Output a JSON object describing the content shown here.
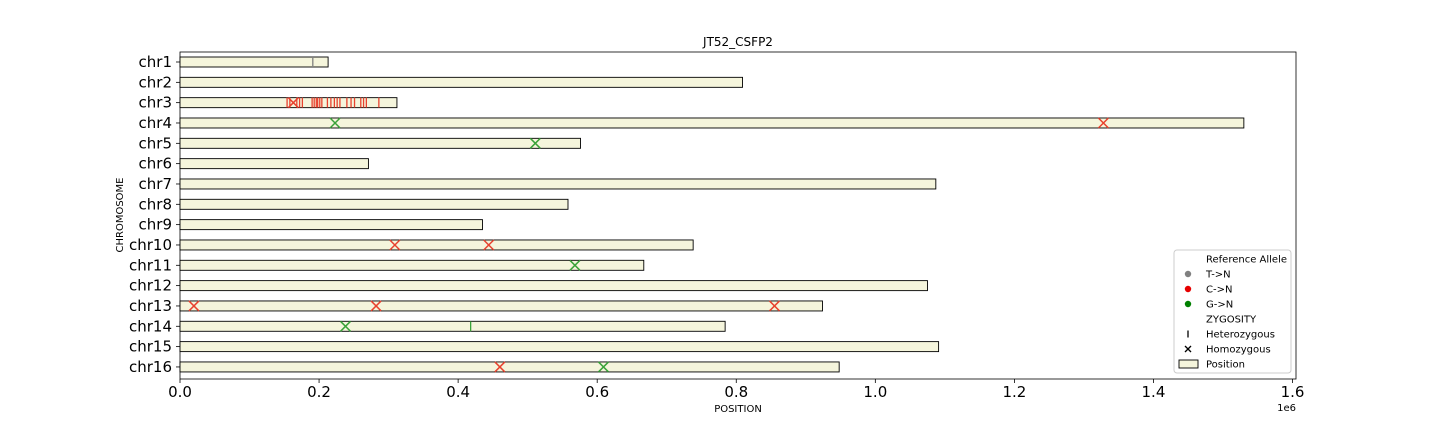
{
  "chart_data": {
    "type": "scatter",
    "title": "JT52_CSFP2",
    "xlabel": "POSITION",
    "ylabel": "CHROMOSOME",
    "x_offset_label": "1e6",
    "xlim": [
      0,
      1605000
    ],
    "x_ticks": [
      0,
      200000,
      400000,
      600000,
      800000,
      1000000,
      1200000,
      1400000,
      1600000
    ],
    "x_tick_labels": [
      "0.0",
      "0.2",
      "0.4",
      "0.6",
      "0.8",
      "1.0",
      "1.2",
      "1.4",
      "1.6"
    ],
    "chromosomes": [
      {
        "name": "chr1",
        "length": 213000
      },
      {
        "name": "chr2",
        "length": 809000
      },
      {
        "name": "chr3",
        "length": 312000
      },
      {
        "name": "chr4",
        "length": 1530000
      },
      {
        "name": "chr5",
        "length": 576000
      },
      {
        "name": "chr6",
        "length": 271000
      },
      {
        "name": "chr7",
        "length": 1087000
      },
      {
        "name": "chr8",
        "length": 558000
      },
      {
        "name": "chr9",
        "length": 435000
      },
      {
        "name": "chr10",
        "length": 738000
      },
      {
        "name": "chr11",
        "length": 667000
      },
      {
        "name": "chr12",
        "length": 1075000
      },
      {
        "name": "chr13",
        "length": 924000
      },
      {
        "name": "chr14",
        "length": 784000
      },
      {
        "name": "chr15",
        "length": 1091000
      },
      {
        "name": "chr16",
        "length": 948000
      }
    ],
    "colors": {
      "T->N": "#808080",
      "C->N": "#e8422f",
      "G->N": "#3aa33a",
      "bar_fill": "#f5f5dc",
      "bar_edge": "#000000"
    },
    "variants": [
      {
        "chrom": "chr1",
        "pos": 191000,
        "ref": "T->N",
        "zygosity": "Heterozygous"
      },
      {
        "chrom": "chr3",
        "pos": 154000,
        "ref": "C->N",
        "zygosity": "Heterozygous"
      },
      {
        "chrom": "chr3",
        "pos": 158000,
        "ref": "C->N",
        "zygosity": "Heterozygous"
      },
      {
        "chrom": "chr3",
        "pos": 163000,
        "ref": "C->N",
        "zygosity": "Homozygous"
      },
      {
        "chrom": "chr3",
        "pos": 168000,
        "ref": "C->N",
        "zygosity": "Heterozygous"
      },
      {
        "chrom": "chr3",
        "pos": 172000,
        "ref": "C->N",
        "zygosity": "Heterozygous"
      },
      {
        "chrom": "chr3",
        "pos": 176000,
        "ref": "C->N",
        "zygosity": "Heterozygous"
      },
      {
        "chrom": "chr3",
        "pos": 190000,
        "ref": "C->N",
        "zygosity": "Heterozygous"
      },
      {
        "chrom": "chr3",
        "pos": 193000,
        "ref": "C->N",
        "zygosity": "Heterozygous"
      },
      {
        "chrom": "chr3",
        "pos": 196000,
        "ref": "C->N",
        "zygosity": "Heterozygous"
      },
      {
        "chrom": "chr3",
        "pos": 198000,
        "ref": "C->N",
        "zygosity": "Heterozygous"
      },
      {
        "chrom": "chr3",
        "pos": 201000,
        "ref": "C->N",
        "zygosity": "Heterozygous"
      },
      {
        "chrom": "chr3",
        "pos": 204000,
        "ref": "C->N",
        "zygosity": "Heterozygous"
      },
      {
        "chrom": "chr3",
        "pos": 212000,
        "ref": "C->N",
        "zygosity": "Heterozygous"
      },
      {
        "chrom": "chr3",
        "pos": 217000,
        "ref": "C->N",
        "zygosity": "Heterozygous"
      },
      {
        "chrom": "chr3",
        "pos": 222000,
        "ref": "C->N",
        "zygosity": "Heterozygous"
      },
      {
        "chrom": "chr3",
        "pos": 226000,
        "ref": "C->N",
        "zygosity": "Heterozygous"
      },
      {
        "chrom": "chr3",
        "pos": 230000,
        "ref": "C->N",
        "zygosity": "Heterozygous"
      },
      {
        "chrom": "chr3",
        "pos": 240000,
        "ref": "C->N",
        "zygosity": "Heterozygous"
      },
      {
        "chrom": "chr3",
        "pos": 246000,
        "ref": "C->N",
        "zygosity": "Heterozygous"
      },
      {
        "chrom": "chr3",
        "pos": 251000,
        "ref": "C->N",
        "zygosity": "Heterozygous"
      },
      {
        "chrom": "chr3",
        "pos": 260000,
        "ref": "C->N",
        "zygosity": "Heterozygous"
      },
      {
        "chrom": "chr3",
        "pos": 264000,
        "ref": "C->N",
        "zygosity": "Heterozygous"
      },
      {
        "chrom": "chr3",
        "pos": 268000,
        "ref": "C->N",
        "zygosity": "Heterozygous"
      },
      {
        "chrom": "chr3",
        "pos": 286000,
        "ref": "C->N",
        "zygosity": "Heterozygous"
      },
      {
        "chrom": "chr4",
        "pos": 223000,
        "ref": "G->N",
        "zygosity": "Homozygous"
      },
      {
        "chrom": "chr4",
        "pos": 1328000,
        "ref": "C->N",
        "zygosity": "Homozygous"
      },
      {
        "chrom": "chr5",
        "pos": 511000,
        "ref": "G->N",
        "zygosity": "Homozygous"
      },
      {
        "chrom": "chr10",
        "pos": 309000,
        "ref": "C->N",
        "zygosity": "Homozygous"
      },
      {
        "chrom": "chr10",
        "pos": 444000,
        "ref": "C->N",
        "zygosity": "Homozygous"
      },
      {
        "chrom": "chr11",
        "pos": 568000,
        "ref": "G->N",
        "zygosity": "Homozygous"
      },
      {
        "chrom": "chr13",
        "pos": 20000,
        "ref": "C->N",
        "zygosity": "Homozygous"
      },
      {
        "chrom": "chr13",
        "pos": 282000,
        "ref": "C->N",
        "zygosity": "Homozygous"
      },
      {
        "chrom": "chr13",
        "pos": 855000,
        "ref": "C->N",
        "zygosity": "Homozygous"
      },
      {
        "chrom": "chr14",
        "pos": 238000,
        "ref": "G->N",
        "zygosity": "Homozygous"
      },
      {
        "chrom": "chr14",
        "pos": 418000,
        "ref": "G->N",
        "zygosity": "Heterozygous"
      },
      {
        "chrom": "chr16",
        "pos": 460000,
        "ref": "C->N",
        "zygosity": "Homozygous"
      },
      {
        "chrom": "chr16",
        "pos": 609000,
        "ref": "G->N",
        "zygosity": "Homozygous"
      }
    ],
    "legend": {
      "placement": "lower-right",
      "entries": [
        {
          "label": "Reference Allele",
          "kind": "header"
        },
        {
          "label": "T->N",
          "kind": "dot",
          "color": "#808080"
        },
        {
          "label": "C->N",
          "kind": "dot",
          "color": "#e60000"
        },
        {
          "label": "G->N",
          "kind": "dot",
          "color": "#008000"
        },
        {
          "label": "ZYGOSITY",
          "kind": "header"
        },
        {
          "label": "Heterozygous",
          "kind": "vline"
        },
        {
          "label": "Homozygous",
          "kind": "x"
        },
        {
          "label": "Position",
          "kind": "rect"
        }
      ]
    }
  }
}
